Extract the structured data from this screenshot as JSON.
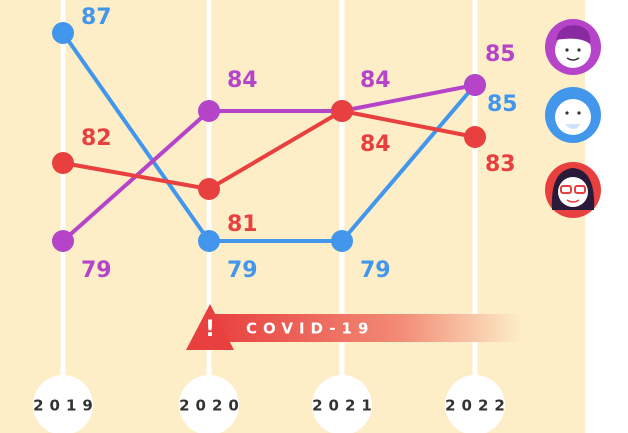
{
  "chart_data": {
    "type": "line",
    "categories": [
      "2019",
      "2020",
      "2021",
      "2022"
    ],
    "series": [
      {
        "color": "#4296ec",
        "values": [
          87,
          79,
          79,
          85
        ]
      },
      {
        "color": "#b544c9",
        "values": [
          79,
          84,
          84,
          85
        ]
      },
      {
        "color": "#e8403f",
        "values": [
          82,
          81,
          84,
          83
        ]
      }
    ],
    "annotation": "COVID-19"
  }
}
